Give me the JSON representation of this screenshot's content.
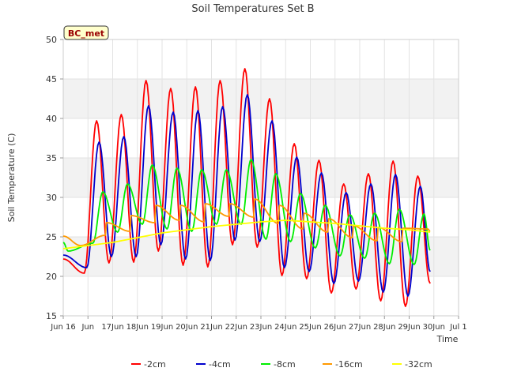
{
  "chart_data": {
    "type": "line",
    "title": "Soil Temperatures Set B",
    "xlabel": "Time",
    "ylabel": "Soil Temperature (C)",
    "site_label": "BC_met",
    "xlim": [
      15.0,
      31.0
    ],
    "ylim": [
      15,
      50
    ],
    "x_ticks": [
      {
        "x": 15,
        "label": "Jun 16"
      },
      {
        "x": 16,
        "label": "Jun"
      },
      {
        "x": 17,
        "label": "17Jun"
      },
      {
        "x": 18,
        "label": "18Jun"
      },
      {
        "x": 19,
        "label": "19Jun"
      },
      {
        "x": 20,
        "label": "20Jun"
      },
      {
        "x": 21,
        "label": "21Jun"
      },
      {
        "x": 22,
        "label": "22Jun"
      },
      {
        "x": 23,
        "label": "23Jun"
      },
      {
        "x": 24,
        "label": "24Jun"
      },
      {
        "x": 25,
        "label": "25Jun"
      },
      {
        "x": 26,
        "label": "26Jun"
      },
      {
        "x": 27,
        "label": "27Jun"
      },
      {
        "x": 28,
        "label": "28Jun"
      },
      {
        "x": 29,
        "label": "29Jun"
      },
      {
        "x": 30,
        "label": "30Jun"
      },
      {
        "x": 31,
        "label": "Jul 1"
      }
    ],
    "y_ticks": [
      15,
      20,
      25,
      30,
      35,
      40,
      45,
      50
    ],
    "grid": true,
    "legend_position": "bottom",
    "series": [
      {
        "name": "-2cm",
        "color": "#ff0000",
        "peaks": [
          [
            16.35,
            39.7
          ],
          [
            17.35,
            40.5
          ],
          [
            18.35,
            44.8
          ],
          [
            19.35,
            43.8
          ],
          [
            20.35,
            44.0
          ],
          [
            21.35,
            44.8
          ],
          [
            22.35,
            46.3
          ],
          [
            23.35,
            42.5
          ],
          [
            24.35,
            36.8
          ],
          [
            25.35,
            34.7
          ],
          [
            26.35,
            31.7
          ],
          [
            27.35,
            33.0
          ],
          [
            28.35,
            34.6
          ],
          [
            29.35,
            32.7
          ]
        ],
        "troughs": [
          [
            15.0,
            22.2
          ],
          [
            15.85,
            20.4
          ],
          [
            16.85,
            21.7
          ],
          [
            17.85,
            21.8
          ],
          [
            18.85,
            23.2
          ],
          [
            19.85,
            21.4
          ],
          [
            20.85,
            21.2
          ],
          [
            21.85,
            24.0
          ],
          [
            22.85,
            23.7
          ],
          [
            23.85,
            20.1
          ],
          [
            24.85,
            19.7
          ],
          [
            25.85,
            17.9
          ],
          [
            26.85,
            18.4
          ],
          [
            27.85,
            16.9
          ],
          [
            28.85,
            16.2
          ],
          [
            29.85,
            19.1
          ]
        ]
      },
      {
        "name": "-4cm",
        "color": "#0000cc",
        "peaks": [
          [
            16.45,
            37.0
          ],
          [
            17.45,
            37.7
          ],
          [
            18.45,
            41.6
          ],
          [
            19.45,
            40.8
          ],
          [
            20.45,
            41.0
          ],
          [
            21.45,
            41.5
          ],
          [
            22.45,
            43.0
          ],
          [
            23.45,
            39.7
          ],
          [
            24.45,
            35.1
          ],
          [
            25.45,
            33.1
          ],
          [
            26.45,
            30.6
          ],
          [
            27.45,
            31.7
          ],
          [
            28.45,
            32.9
          ],
          [
            29.45,
            31.4
          ]
        ],
        "troughs": [
          [
            15.0,
            22.7
          ],
          [
            15.95,
            21.1
          ],
          [
            16.95,
            22.5
          ],
          [
            17.95,
            22.5
          ],
          [
            18.95,
            24.0
          ],
          [
            19.95,
            22.2
          ],
          [
            20.95,
            22.0
          ],
          [
            21.95,
            24.6
          ],
          [
            22.95,
            24.4
          ],
          [
            23.95,
            21.1
          ],
          [
            24.95,
            20.6
          ],
          [
            25.95,
            19.1
          ],
          [
            26.95,
            19.4
          ],
          [
            27.95,
            18.0
          ],
          [
            28.95,
            17.5
          ],
          [
            29.85,
            20.6
          ]
        ]
      },
      {
        "name": "-8cm",
        "color": "#00ee00",
        "peaks": [
          [
            16.6,
            30.7
          ],
          [
            17.6,
            31.7
          ],
          [
            18.6,
            34.1
          ],
          [
            19.6,
            33.7
          ],
          [
            20.6,
            33.5
          ],
          [
            21.6,
            33.5
          ],
          [
            22.6,
            34.8
          ],
          [
            23.6,
            33.0
          ],
          [
            24.6,
            30.5
          ],
          [
            25.6,
            29.0
          ],
          [
            26.6,
            27.8
          ],
          [
            27.6,
            28.0
          ],
          [
            28.6,
            28.5
          ],
          [
            29.6,
            27.9
          ]
        ],
        "troughs": [
          [
            15.0,
            24.3
          ],
          [
            15.2,
            23.2
          ],
          [
            16.2,
            24.2
          ],
          [
            17.2,
            25.6
          ],
          [
            18.2,
            26.6
          ],
          [
            19.2,
            26.0
          ],
          [
            20.2,
            25.7
          ],
          [
            21.2,
            26.6
          ],
          [
            22.2,
            26.6
          ],
          [
            23.2,
            24.7
          ],
          [
            24.2,
            24.4
          ],
          [
            25.2,
            23.6
          ],
          [
            26.2,
            22.6
          ],
          [
            27.2,
            22.3
          ],
          [
            28.2,
            21.6
          ],
          [
            29.2,
            21.5
          ],
          [
            29.85,
            23.3
          ]
        ]
      },
      {
        "name": "-16cm",
        "color": "#ff9900",
        "peaks": [
          [
            15.0,
            25.1
          ],
          [
            16.75,
            26.8
          ],
          [
            17.75,
            27.7
          ],
          [
            18.75,
            29.0
          ],
          [
            19.75,
            29.0
          ],
          [
            20.75,
            29.2
          ],
          [
            21.75,
            29.2
          ],
          [
            22.75,
            29.8
          ],
          [
            23.75,
            29.0
          ],
          [
            24.75,
            28.0
          ],
          [
            25.75,
            27.3
          ],
          [
            26.75,
            26.4
          ],
          [
            27.75,
            26.2
          ],
          [
            28.75,
            26.1
          ],
          [
            29.75,
            26.0
          ]
        ],
        "troughs": [
          [
            15.7,
            23.9
          ],
          [
            16.7,
            25.2
          ],
          [
            17.7,
            25.7
          ],
          [
            18.7,
            26.8
          ],
          [
            19.7,
            27.1
          ],
          [
            20.7,
            26.9
          ],
          [
            21.7,
            27.6
          ],
          [
            22.7,
            27.5
          ],
          [
            23.7,
            26.7
          ],
          [
            24.7,
            26.0
          ],
          [
            25.7,
            25.6
          ],
          [
            26.7,
            24.9
          ],
          [
            27.7,
            24.5
          ],
          [
            28.7,
            24.4
          ],
          [
            29.85,
            25.7
          ]
        ]
      },
      {
        "name": "-32cm",
        "color": "#ffff00",
        "points": [
          [
            15.0,
            23.5
          ],
          [
            16.0,
            23.9
          ],
          [
            17.0,
            24.3
          ],
          [
            18.0,
            24.9
          ],
          [
            19.0,
            25.5
          ],
          [
            20.0,
            25.9
          ],
          [
            21.0,
            26.3
          ],
          [
            22.0,
            26.6
          ],
          [
            23.0,
            26.9
          ],
          [
            24.0,
            27.1
          ],
          [
            25.0,
            26.9
          ],
          [
            26.0,
            26.7
          ],
          [
            27.0,
            26.4
          ],
          [
            28.0,
            26.1
          ],
          [
            29.0,
            25.9
          ],
          [
            29.85,
            25.6
          ]
        ]
      }
    ]
  }
}
